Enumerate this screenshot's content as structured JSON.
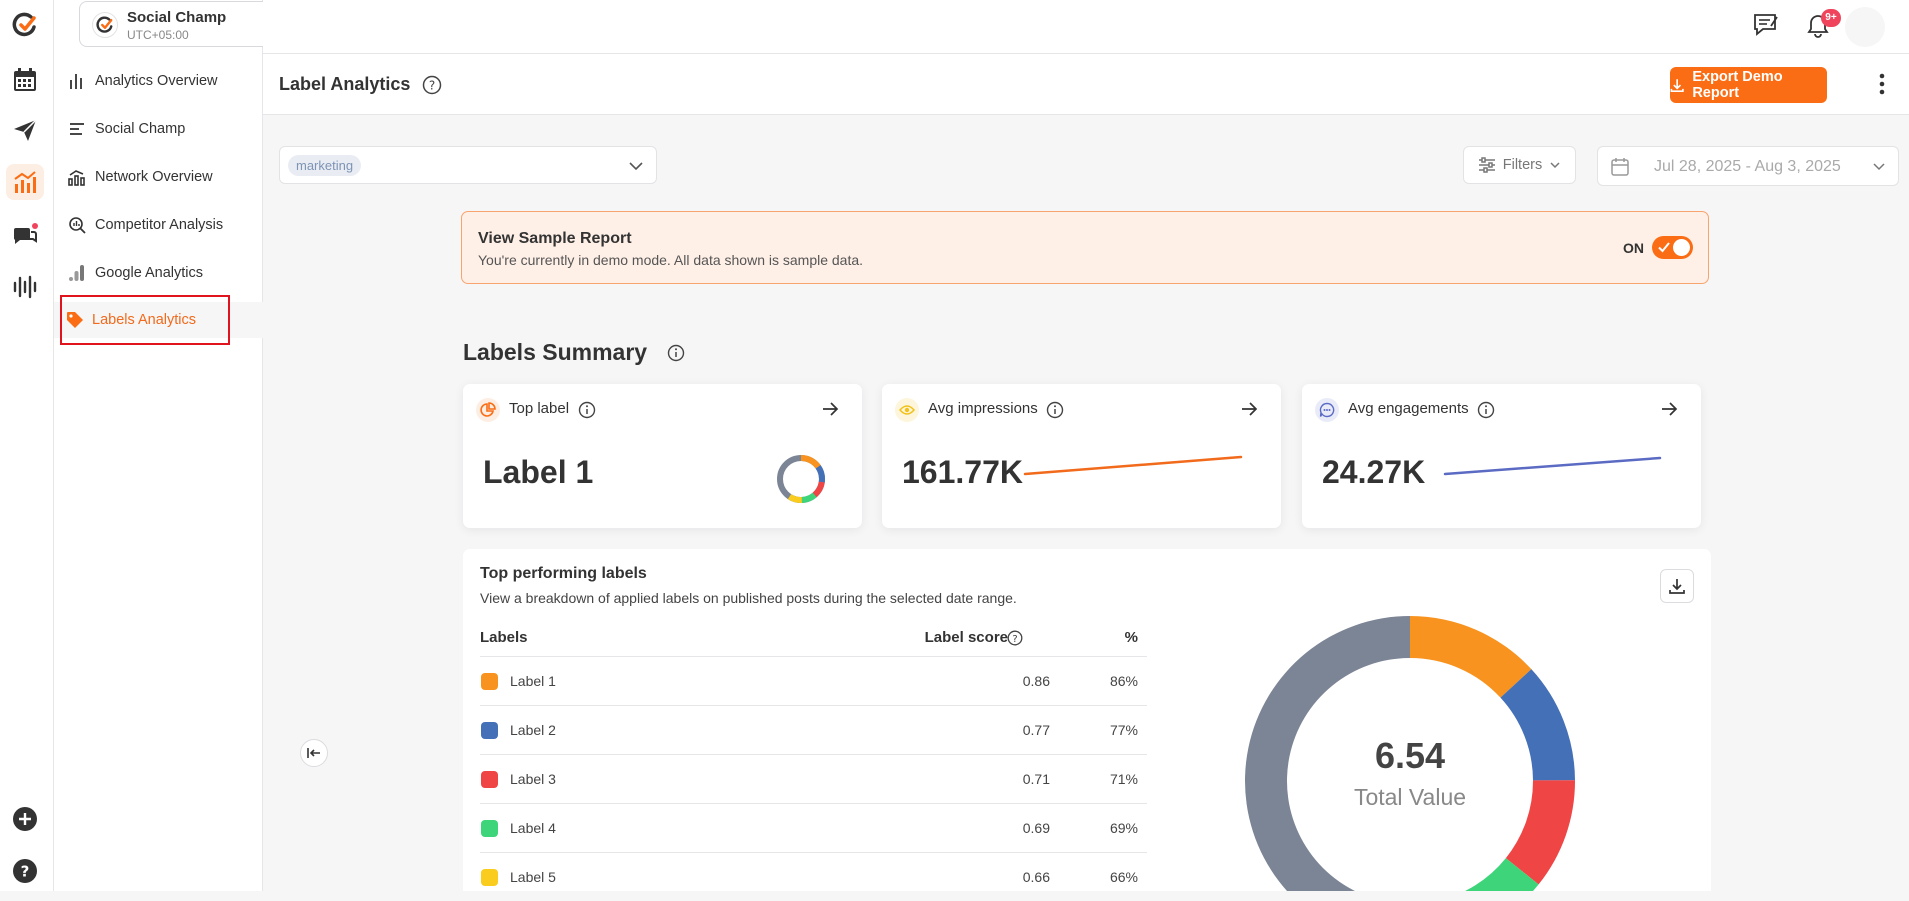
{
  "workspace": {
    "name": "Social Champ",
    "timezone": "UTC+05:00"
  },
  "notifications": {
    "badge": "9+"
  },
  "sidebar": {
    "items": [
      {
        "label": "Analytics Overview"
      },
      {
        "label": "Social Champ"
      },
      {
        "label": "Network Overview"
      },
      {
        "label": "Competitor Analysis"
      },
      {
        "label": "Google Analytics"
      },
      {
        "label": "Labels Analytics"
      }
    ]
  },
  "header": {
    "title": "Label Analytics",
    "export_label": "Export Demo Report"
  },
  "filters": {
    "selected_label": "marketing",
    "filters_label": "Filters",
    "date_range": "Jul 28, 2025 - Aug 3, 2025"
  },
  "banner": {
    "title": "View Sample Report",
    "subtitle": "You're currently in demo mode. All data shown is sample data.",
    "toggle_label": "ON"
  },
  "summary": {
    "title": "Labels Summary",
    "cards": [
      {
        "title": "Top label",
        "value": "Label 1"
      },
      {
        "title": "Avg impressions",
        "value": "161.77K"
      },
      {
        "title": "Avg engagements",
        "value": "24.27K"
      }
    ]
  },
  "top_performing": {
    "title": "Top performing labels",
    "subtitle": "View a breakdown of applied labels on published posts during the selected date range.",
    "columns": [
      "Labels",
      "Label score",
      "%"
    ],
    "rows": [
      {
        "label": "Label 1",
        "score": "0.86",
        "percent": "86%",
        "color": "#f7931e"
      },
      {
        "label": "Label 2",
        "score": "0.77",
        "percent": "77%",
        "color": "#4470b8"
      },
      {
        "label": "Label 3",
        "score": "0.71",
        "percent": "71%",
        "color": "#ef4545"
      },
      {
        "label": "Label 4",
        "score": "0.69",
        "percent": "69%",
        "color": "#3dd47a"
      },
      {
        "label": "Label 5",
        "score": "0.66",
        "percent": "66%",
        "color": "#f9cc1e"
      }
    ],
    "total_value": "6.54",
    "total_label": "Total Value"
  },
  "colors": {
    "accent": "#fa6d14",
    "impressions_line": "#f26a1b",
    "engagements_line": "#5b6bc4",
    "donut_rest": "#7c8595"
  }
}
